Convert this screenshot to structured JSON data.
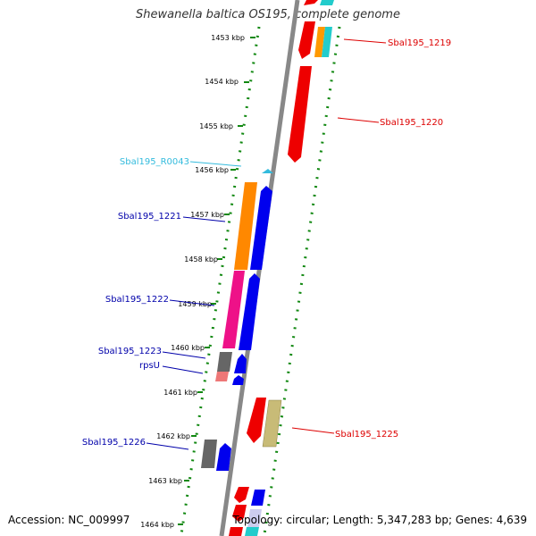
{
  "title": "Shewanella baltica OS195, complete genome",
  "accession": "Accession: NC_009997",
  "summary": "Topology: circular; Length: 5,347,283 bp; Genes: 4,639",
  "ticks": [
    "1453 kbp",
    "1454 kbp",
    "1455 kbp",
    "1456 kbp",
    "1457 kbp",
    "1458 kbp",
    "1459 kbp",
    "1460 kbp",
    "1461 kbp",
    "1462 kbp",
    "1463 kbp",
    "1464 kbp"
  ],
  "gene_labels": [
    {
      "text": "Sbal195_1219",
      "strand": "reverse",
      "color": "#dd0000"
    },
    {
      "text": "Sbal195_1220",
      "strand": "reverse",
      "color": "#dd0000"
    },
    {
      "text": "Sbal195_R0043",
      "strand": "forward",
      "color": "#33bbdd"
    },
    {
      "text": "Sbal195_1221",
      "strand": "forward",
      "color": "#0000aa"
    },
    {
      "text": "Sbal195_1222",
      "strand": "forward",
      "color": "#0000aa"
    },
    {
      "text": "Sbal195_1223",
      "strand": "forward",
      "color": "#0000aa"
    },
    {
      "text": "rpsU",
      "strand": "forward",
      "color": "#0000aa"
    },
    {
      "text": "Sbal195_1225",
      "strand": "reverse",
      "color": "#dd0000"
    },
    {
      "text": "Sbal195_1226",
      "strand": "forward",
      "color": "#0000aa"
    }
  ],
  "colors": {
    "backbone": "#888888",
    "tick": "#118811",
    "forward_cds": "#0000ee",
    "reverse_cds": "#ee0000",
    "rna": "#33bbdd"
  }
}
